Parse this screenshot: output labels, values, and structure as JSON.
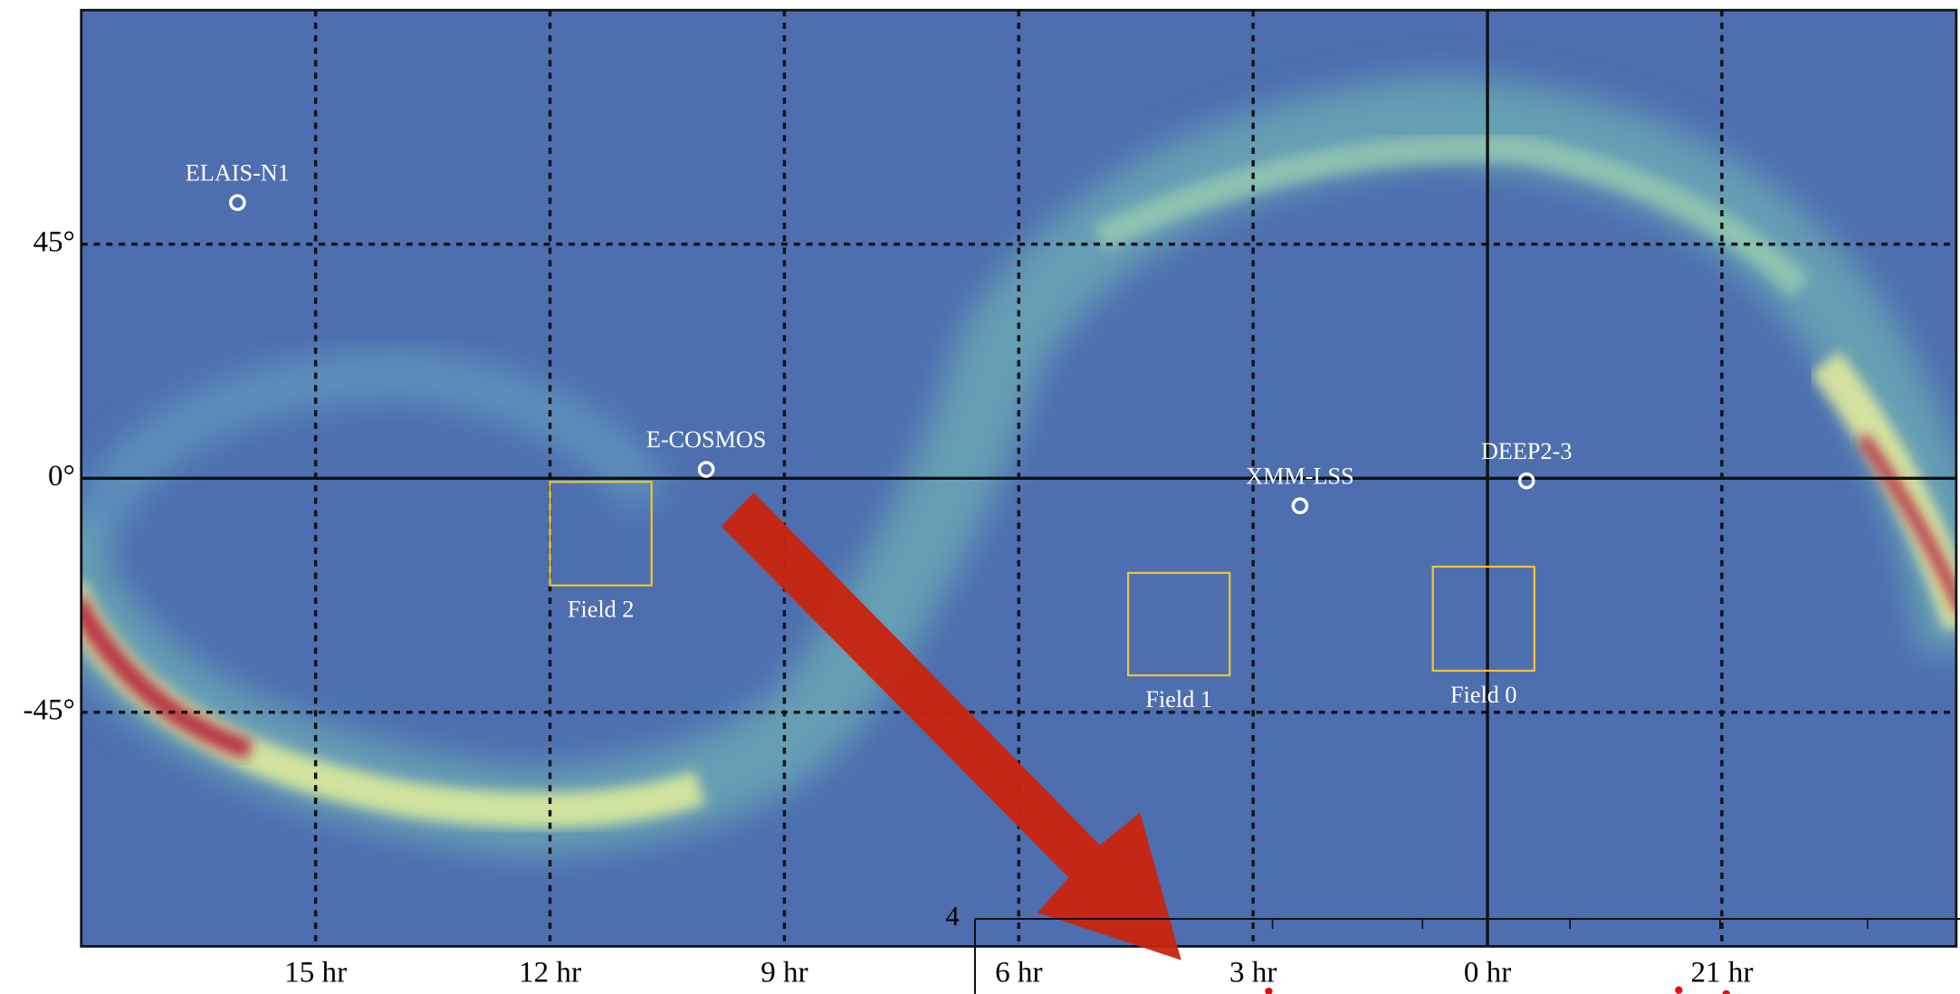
{
  "chart_data": {
    "type": "sky_map",
    "xlim": [
      18,
      -6
    ],
    "ylim": [
      -90,
      90
    ],
    "xticks": [
      {
        "value": 15,
        "label": "15 hr"
      },
      {
        "value": 12,
        "label": "12 hr"
      },
      {
        "value": 9,
        "label": "9 hr"
      },
      {
        "value": 6,
        "label": "6 hr"
      },
      {
        "value": 3,
        "label": "3 hr"
      },
      {
        "value": 0,
        "label": "0 hr"
      },
      {
        "value": -3,
        "label": "21 hr"
      }
    ],
    "yticks": [
      {
        "value": 45,
        "label": "45°"
      },
      {
        "value": 0,
        "label": "0°"
      },
      {
        "value": -45,
        "label": "-45°"
      }
    ],
    "grid": true,
    "points": [
      {
        "label": "ELAIS-N1",
        "ra": 16.0,
        "dec": 53
      },
      {
        "label": "E-COSMOS",
        "ra": 10.0,
        "dec": 1.7
      },
      {
        "label": "XMM-LSS",
        "ra": 2.4,
        "dec": -5.3
      },
      {
        "label": "DEEP2-3",
        "ra": -0.5,
        "dec": -0.5
      }
    ],
    "fields": [
      {
        "label": "Field 2",
        "ra": [
          12.0,
          10.7
        ],
        "dec": [
          -0.7,
          -20.6
        ]
      },
      {
        "label": "Field 1",
        "ra": [
          4.6,
          3.3
        ],
        "dec": [
          -18.2,
          -37.9
        ]
      },
      {
        "label": "Field 0",
        "ra": [
          0.7,
          -0.6
        ],
        "dec": [
          -17,
          -37
        ]
      }
    ],
    "point_color": "#ffffff",
    "field_color": "#f2c530",
    "inset_label": "4"
  }
}
